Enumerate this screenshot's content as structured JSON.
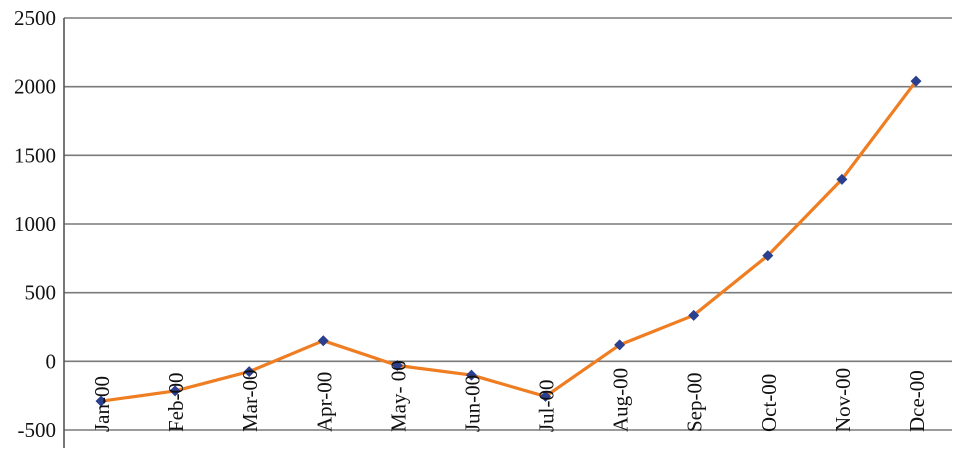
{
  "chart_data": {
    "type": "line",
    "title": "",
    "xlabel": "",
    "ylabel": "",
    "categories": [
      "Jan-00",
      "Feb-00",
      "Mar-00",
      "Apr-00",
      "May- 00",
      "Jun-00",
      "Jul-00",
      "Aug-00",
      "Sep-00",
      "Oct-00",
      "Nov-00",
      "Dce-00"
    ],
    "series": [
      {
        "values": [
          -290,
          -215,
          -75,
          150,
          -30,
          -100,
          -255,
          120,
          335,
          770,
          1325,
          2040
        ]
      }
    ],
    "ylim": [
      -500,
      2500
    ],
    "yticks": [
      "2500",
      "2000",
      "1500",
      "1000",
      "500",
      "0",
      "-500"
    ],
    "grid": true,
    "legend": "none",
    "colors": {
      "line": "#ef7d22",
      "marker": "#2b3f8f",
      "grid": "#7a7a7a"
    }
  }
}
